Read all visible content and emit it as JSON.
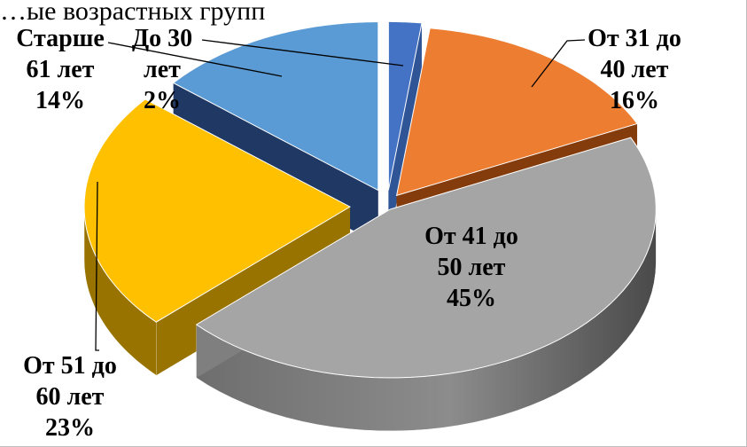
{
  "chart_data": {
    "type": "pie",
    "title": "…ые возрастных групп",
    "categories": [
      "До 30 лет",
      "От 31 до 40 лет",
      "От 41 до 50 лет",
      "От 51 до 60 лет",
      "Старше 61 лет"
    ],
    "values": [
      2,
      16,
      45,
      23,
      14
    ],
    "labels": [
      {
        "lines": [
          "До 30",
          "лет",
          "2%"
        ]
      },
      {
        "lines": [
          "От 31 до",
          "40 лет",
          "16%"
        ]
      },
      {
        "lines": [
          "От 41 до",
          "50 лет",
          "45%"
        ]
      },
      {
        "lines": [
          "От 51 до",
          "60 лет",
          "23%"
        ]
      },
      {
        "lines": [
          "Старше",
          "61 лет",
          "14%"
        ]
      }
    ],
    "colors": [
      "#4472c4",
      "#ed7d31",
      "#a5a5a5",
      "#ffc000",
      "#5b9bd5"
    ],
    "exploded": true,
    "three_d": true,
    "legend": "none"
  }
}
